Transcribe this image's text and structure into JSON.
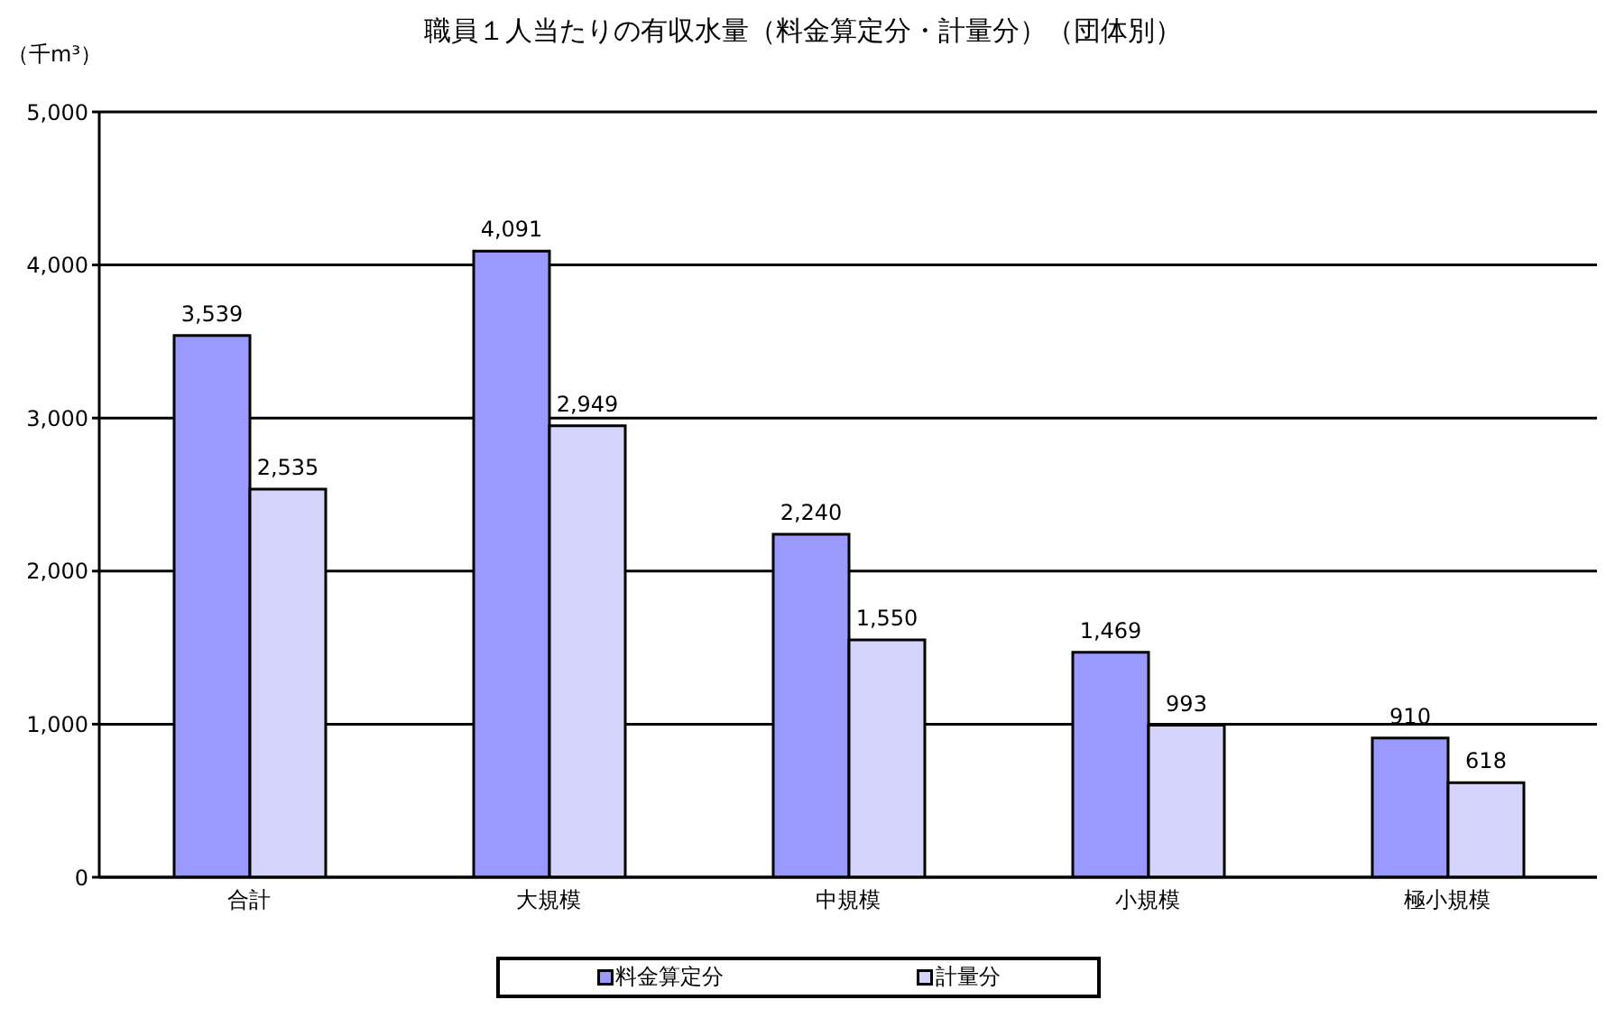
{
  "chart_data": {
    "type": "bar",
    "title": "職員１人当たりの有収水量（料金算定分・計量分）（団体別）",
    "ylabel": "（千m³）",
    "categories": [
      "合計",
      "大規模",
      "中規模",
      "小規模",
      "極小規模"
    ],
    "series": [
      {
        "name": "料金算定分",
        "color": "#9999ff",
        "values": [
          3539,
          4091,
          2240,
          1469,
          910
        ],
        "value_labels": [
          "3,539",
          "4,091",
          "2,240",
          "1,469",
          "910"
        ]
      },
      {
        "name": "計量分",
        "color": "#d4d4fc",
        "values": [
          2535,
          2949,
          1550,
          993,
          618
        ],
        "value_labels": [
          "2,535",
          "2,949",
          "1,550",
          "993",
          "618"
        ]
      }
    ],
    "ylim": [
      0,
      5000
    ],
    "yticks": [
      0,
      {
        "value": 1000,
        "label": "1,000"
      },
      {
        "value": 2000,
        "label": "2,000"
      },
      {
        "value": 3000,
        "label": "3,000"
      },
      {
        "value": 4000,
        "label": "4,000"
      },
      {
        "value": 5000,
        "label": "5,000"
      }
    ],
    "grid": "y",
    "legend": "bottom"
  }
}
